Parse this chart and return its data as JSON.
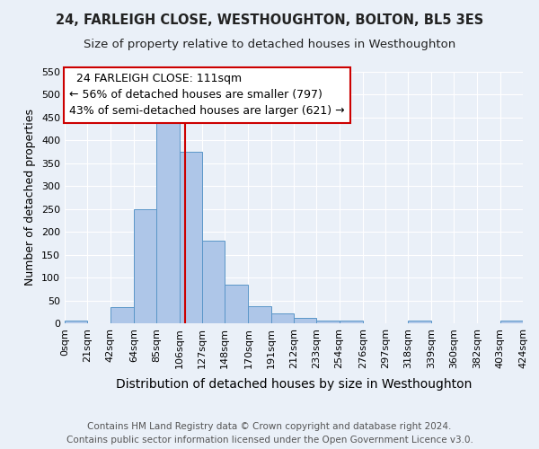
{
  "title": "24, FARLEIGH CLOSE, WESTHOUGHTON, BOLTON, BL5 3ES",
  "subtitle": "Size of property relative to detached houses in Westhoughton",
  "xlabel": "Distribution of detached houses by size in Westhoughton",
  "ylabel": "Number of detached properties",
  "bin_edges": [
    0,
    21,
    42,
    64,
    85,
    106,
    127,
    148,
    170,
    191,
    212,
    233,
    254,
    276,
    297,
    318,
    339,
    360,
    382,
    403,
    424
  ],
  "bar_heights": [
    5,
    0,
    35,
    250,
    450,
    375,
    180,
    85,
    37,
    22,
    11,
    5,
    5,
    0,
    0,
    5,
    0,
    0,
    0,
    5
  ],
  "bar_color": "#aec6e8",
  "bar_edge_color": "#5a96c8",
  "background_color": "#eaf0f8",
  "grid_color": "#ffffff",
  "vline_x": 111,
  "vline_color": "#cc0000",
  "annotation_text": "  24 FARLEIGH CLOSE: 111sqm  \n← 56% of detached houses are smaller (797)\n43% of semi-detached houses are larger (621) →",
  "annotation_box_color": "#ffffff",
  "annotation_box_edge": "#cc0000",
  "xlim": [
    0,
    424
  ],
  "ylim": [
    0,
    550
  ],
  "yticks": [
    0,
    50,
    100,
    150,
    200,
    250,
    300,
    350,
    400,
    450,
    500,
    550
  ],
  "xtick_labels": [
    "0sqm",
    "21sqm",
    "42sqm",
    "64sqm",
    "85sqm",
    "106sqm",
    "127sqm",
    "148sqm",
    "170sqm",
    "191sqm",
    "212sqm",
    "233sqm",
    "254sqm",
    "276sqm",
    "297sqm",
    "318sqm",
    "339sqm",
    "360sqm",
    "382sqm",
    "403sqm",
    "424sqm"
  ],
  "footer_line1": "Contains HM Land Registry data © Crown copyright and database right 2024.",
  "footer_line2": "Contains public sector information licensed under the Open Government Licence v3.0.",
  "title_fontsize": 10.5,
  "subtitle_fontsize": 9.5,
  "xlabel_fontsize": 10,
  "ylabel_fontsize": 9,
  "tick_fontsize": 8,
  "annotation_fontsize": 9,
  "footer_fontsize": 7.5
}
